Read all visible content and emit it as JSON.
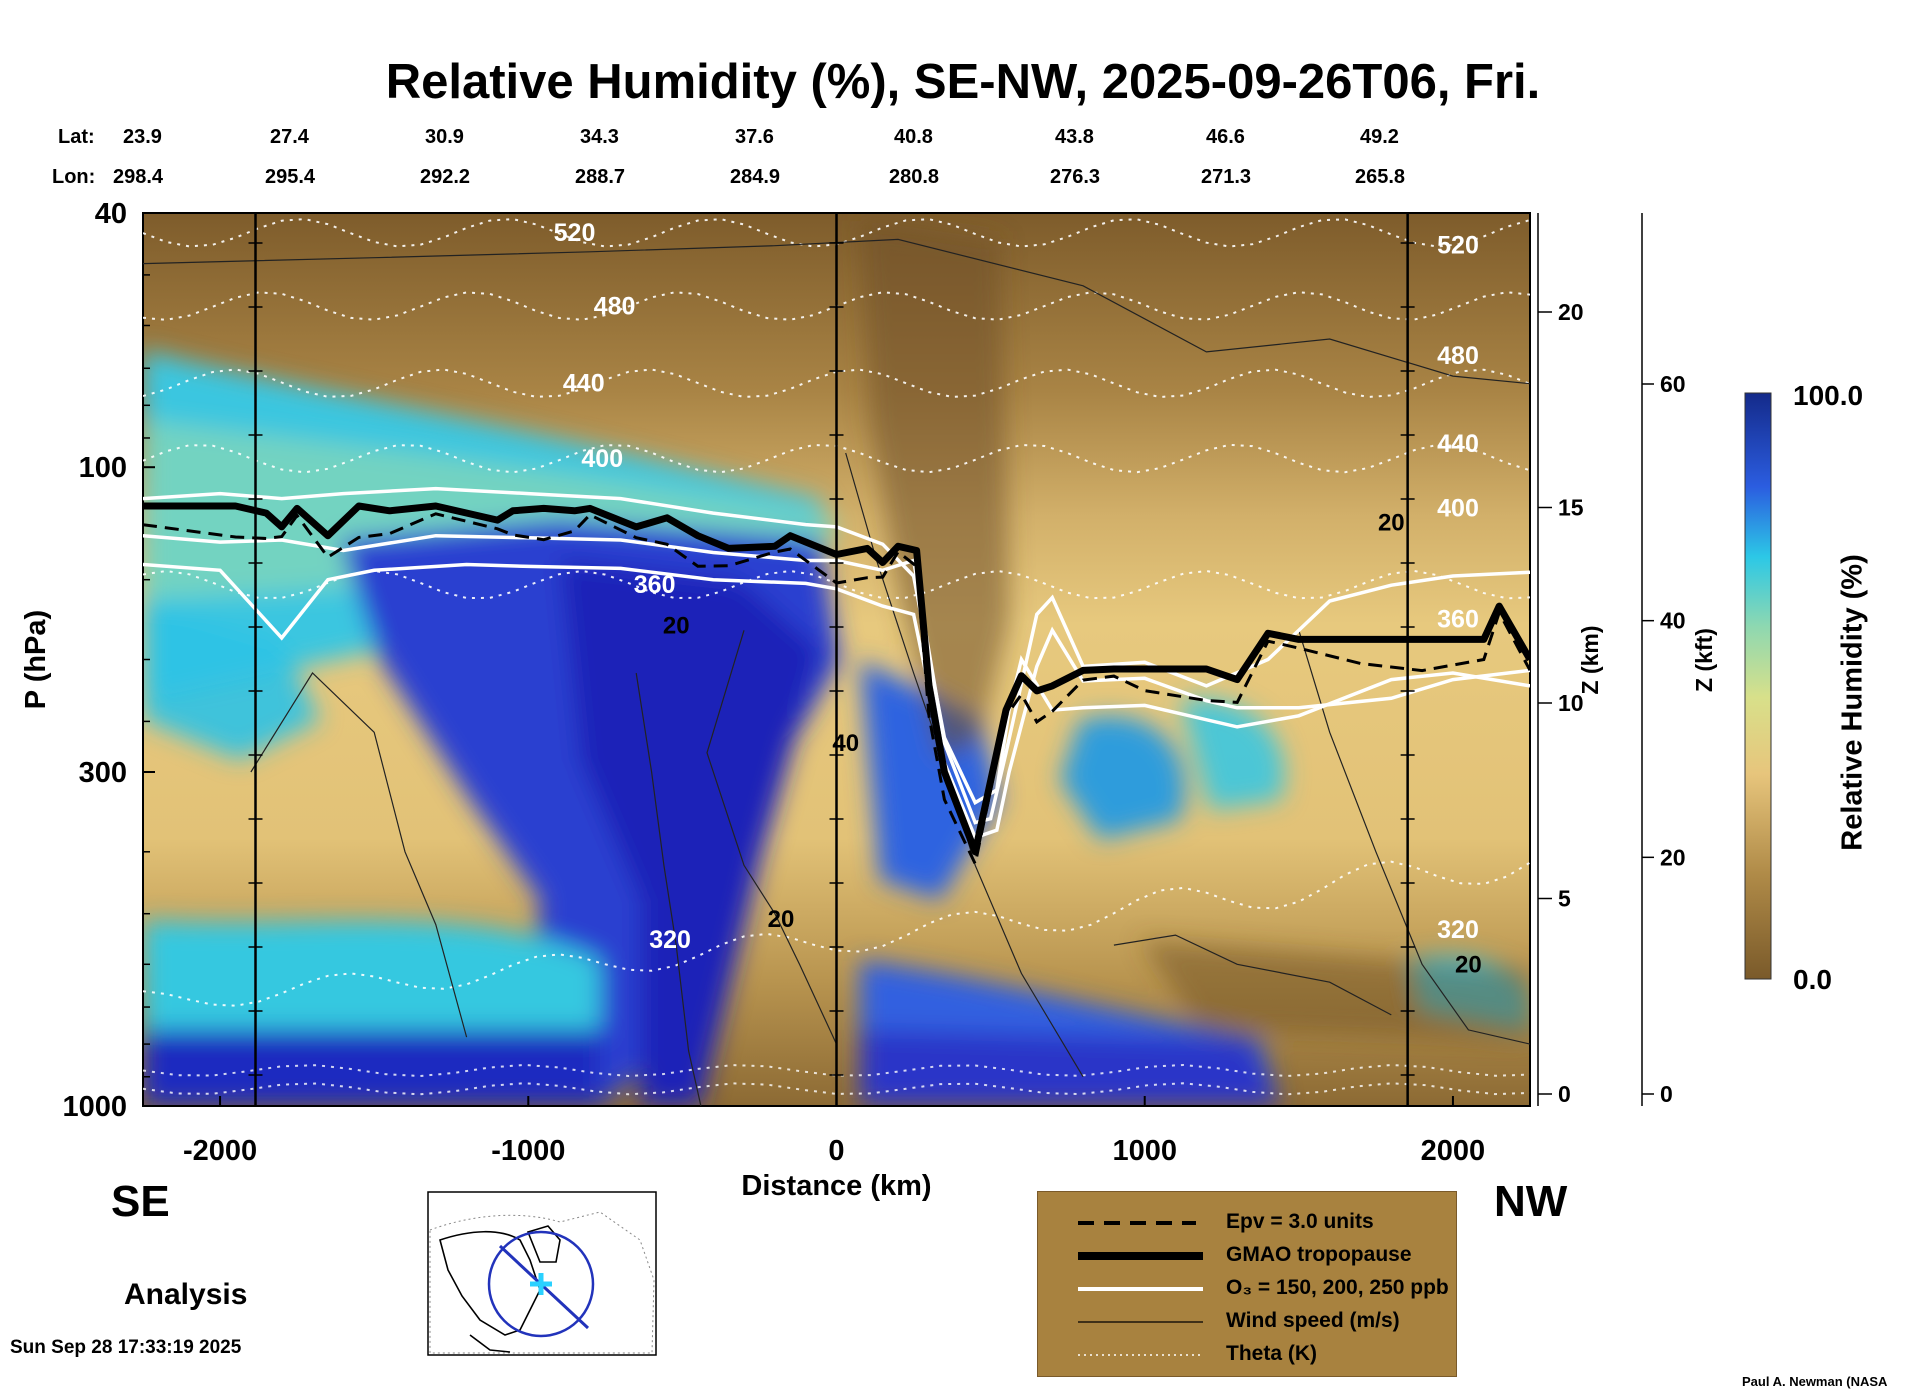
{
  "title": "Relative Humidity (%), SE-NW, 2025-09-26T06, Fri.",
  "lat_label": "Lat:",
  "lon_label": "Lon:",
  "lats": [
    "23.9",
    "27.4",
    "30.9",
    "34.3",
    "37.6",
    "40.8",
    "43.8",
    "46.6",
    "49.2"
  ],
  "lons": [
    "298.4",
    "295.4",
    "292.2",
    "288.7",
    "284.9",
    "280.8",
    "276.3",
    "271.3",
    "265.8"
  ],
  "direction_left": "SE",
  "direction_right": "NW",
  "analysis_label": "Analysis",
  "timestamp": "Sun Sep 28 17:33:19 2025",
  "credit": "Paul A. Newman (NASA",
  "legend": {
    "epv": "Epv = 3.0 units",
    "tropopause": "GMAO tropopause",
    "ozone": "O₃ = 150, 200, 250 ppb",
    "wind": "Wind speed (m/s)",
    "theta": "Theta (K)"
  },
  "colorbar": {
    "max_label": "100.0",
    "min_label": "0.0",
    "title": "Relative Humidity (%)"
  },
  "colors": {
    "dry": "#7a5a2a",
    "moist_mid": "#e8c880",
    "cyan": "#29c6e0",
    "wet": "#1a1fb0",
    "legend_bg": "#a8823f"
  },
  "chart_data": {
    "type": "heatmap",
    "title": "Relative Humidity (%), SE-NW, 2025-09-26T06, Fri.",
    "xlabel": "Distance (km)",
    "ylabel": "P (hPa)",
    "y2label": "Z (km)",
    "y3label": "Z (kft)",
    "xlim": [
      -2250,
      2250
    ],
    "ylim": [
      1000,
      40
    ],
    "x_ticks": [
      -2000,
      -1000,
      0,
      1000,
      2000
    ],
    "x_tick_labels": [
      "-2000",
      "-1000",
      "0",
      "1000",
      "2000"
    ],
    "y_ticks": [
      40,
      100,
      300,
      1000
    ],
    "y_tick_labels": [
      "40",
      "100",
      "300",
      "1000"
    ],
    "z_km_ticks": [
      0,
      5,
      10,
      15,
      20
    ],
    "z_km_labels": [
      "0",
      "5",
      "10",
      "15",
      "20"
    ],
    "z_kft_ticks": [
      0,
      20,
      40,
      60
    ],
    "z_kft_labels": [
      "0",
      "20",
      "40",
      "60"
    ],
    "colorbar_range": [
      0,
      100
    ],
    "theta_contours": [
      {
        "label": "520",
        "p": 43,
        "label_x": -850
      },
      {
        "label": "480",
        "p": 56,
        "label_x": -720
      },
      {
        "label": "440",
        "p": 74,
        "label_x": -820
      },
      {
        "label": "400",
        "p": 97,
        "label_x": -760
      },
      {
        "label": "360",
        "p": 153,
        "label_x": -590
      },
      {
        "label": "320",
        "p": 550,
        "label_x": -540
      }
    ],
    "theta_labels_right": [
      {
        "label": "520",
        "p": 45
      },
      {
        "label": "480",
        "p": 67
      },
      {
        "label": "440",
        "p": 92
      },
      {
        "label": "400",
        "p": 116
      },
      {
        "label": "360",
        "p": 173
      },
      {
        "label": "320",
        "p": 530
      }
    ],
    "wind_labels": [
      {
        "label": "20",
        "x": -520,
        "p": 177
      },
      {
        "label": "40",
        "x": 30,
        "p": 270
      },
      {
        "label": "20",
        "x": -180,
        "p": 510
      },
      {
        "label": "20",
        "x": 1800,
        "p": 122
      },
      {
        "label": "20",
        "x": 2050,
        "p": 600
      }
    ],
    "tropopause": {
      "x": [
        -2250,
        -1950,
        -1850,
        -1800,
        -1750,
        -1650,
        -1550,
        -1450,
        -1300,
        -1100,
        -1050,
        -950,
        -850,
        -800,
        -650,
        -550,
        -450,
        -350,
        -200,
        -150,
        0,
        100,
        150,
        200,
        260,
        300,
        350,
        450,
        550,
        600,
        650,
        700,
        800,
        900,
        1000,
        1200,
        1300,
        1400,
        1500,
        1700,
        1900,
        2100,
        2150,
        2250
      ],
      "p": [
        115,
        115,
        118,
        124,
        116,
        128,
        115,
        117,
        115,
        121,
        117,
        116,
        117,
        116,
        124,
        120,
        128,
        134,
        133,
        128,
        137,
        134,
        141,
        133,
        135,
        220,
        300,
        400,
        240,
        212,
        224,
        220,
        208,
        207,
        207,
        207,
        215,
        182,
        186,
        186,
        186,
        186,
        165,
        200
      ]
    },
    "o3_contours": [
      {
        "x": [
          -2250,
          -2000,
          -1800,
          -1600,
          -1300,
          -1000,
          -700,
          -400,
          -100,
          0,
          150,
          250,
          350,
          450,
          500,
          550,
          650,
          700,
          800,
          1000,
          1200,
          1400,
          1600,
          1800,
          2000,
          2250
        ],
        "p": [
          128,
          131,
          130,
          135,
          128,
          129,
          130,
          136,
          140,
          140,
          145,
          140,
          270,
          360,
          355,
          280,
          170,
          160,
          205,
          202,
          220,
          200,
          162,
          153,
          148,
          146
        ]
      },
      {
        "x": [
          -2250,
          -2000,
          -1800,
          -1650,
          -1500,
          -1200,
          -1000,
          -700,
          -400,
          -100,
          0,
          150,
          250,
          350,
          450,
          520,
          560,
          650,
          700,
          800,
          1000,
          1200,
          1300,
          1500,
          1800,
          2000,
          2250
        ],
        "p": [
          142,
          145,
          185,
          150,
          145,
          142,
          143,
          144,
          150,
          152,
          155,
          165,
          170,
          290,
          380,
          370,
          300,
          205,
          180,
          216,
          214,
          232,
          238,
          238,
          230,
          215,
          208
        ]
      },
      {
        "x": [
          -2250,
          -2000,
          -1800,
          -1600,
          -1300,
          -1000,
          -700,
          -400,
          -100,
          0,
          150,
          250,
          350,
          450,
          520,
          560,
          600,
          700,
          800,
          1000,
          1300,
          1500,
          1800,
          2000,
          2250
        ],
        "p": [
          112,
          110,
          112,
          110,
          108,
          110,
          112,
          118,
          123,
          124,
          132,
          148,
          265,
          335,
          320,
          240,
          200,
          240,
          238,
          236,
          255,
          245,
          215,
          210,
          220
        ]
      }
    ]
  }
}
